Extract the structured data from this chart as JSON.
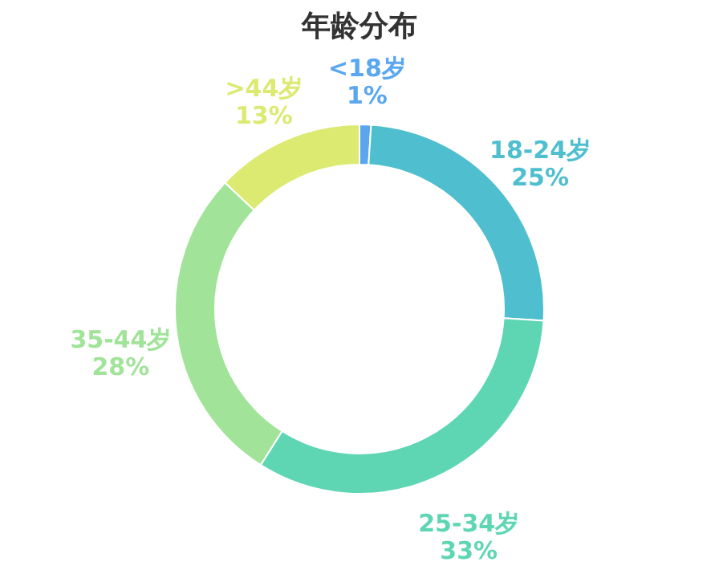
{
  "chart_data": {
    "type": "donut",
    "title": "年龄分布",
    "categories": [
      "<18岁",
      "18-24岁",
      "25-34岁",
      "35-44岁",
      ">44岁"
    ],
    "values": [
      1,
      25,
      33,
      28,
      13
    ],
    "value_labels": [
      "1%",
      "25%",
      "33%",
      "28%",
      "13%"
    ],
    "colors": [
      "#5aa7f0",
      "#4fbfcf",
      "#5fd6b3",
      "#a2e39a",
      "#dcea72"
    ],
    "legend": false
  }
}
